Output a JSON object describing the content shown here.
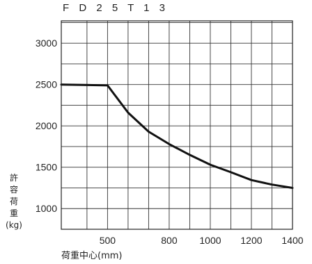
{
  "chart_data": {
    "type": "line",
    "title": "F D 2 5 T 1 3",
    "ylabel_chars": [
      "許",
      "容",
      "荷",
      "重",
      "(kg)"
    ],
    "xlabel": "荷重中心(mm)",
    "xlim": [
      275,
      1400
    ],
    "ylim": [
      750,
      3270
    ],
    "x_ticks": [
      500,
      800,
      1000,
      1200,
      1400
    ],
    "y_ticks": [
      1000,
      1500,
      2000,
      2500,
      3000
    ],
    "x_gridlines": [
      275,
      400,
      500,
      600,
      700,
      800,
      900,
      1000,
      1100,
      1200,
      1300,
      1400
    ],
    "y_gridlines": [
      750,
      1000,
      1250,
      1500,
      1750,
      2000,
      2250,
      2500,
      2750,
      3000,
      3250
    ],
    "grid": true,
    "series": [
      {
        "x": [
          275,
          500,
          600,
          700,
          800,
          900,
          1000,
          1100,
          1200,
          1300,
          1400
        ],
        "y": [
          2500,
          2490,
          2160,
          1930,
          1780,
          1650,
          1530,
          1440,
          1345,
          1290,
          1250
        ]
      }
    ]
  }
}
